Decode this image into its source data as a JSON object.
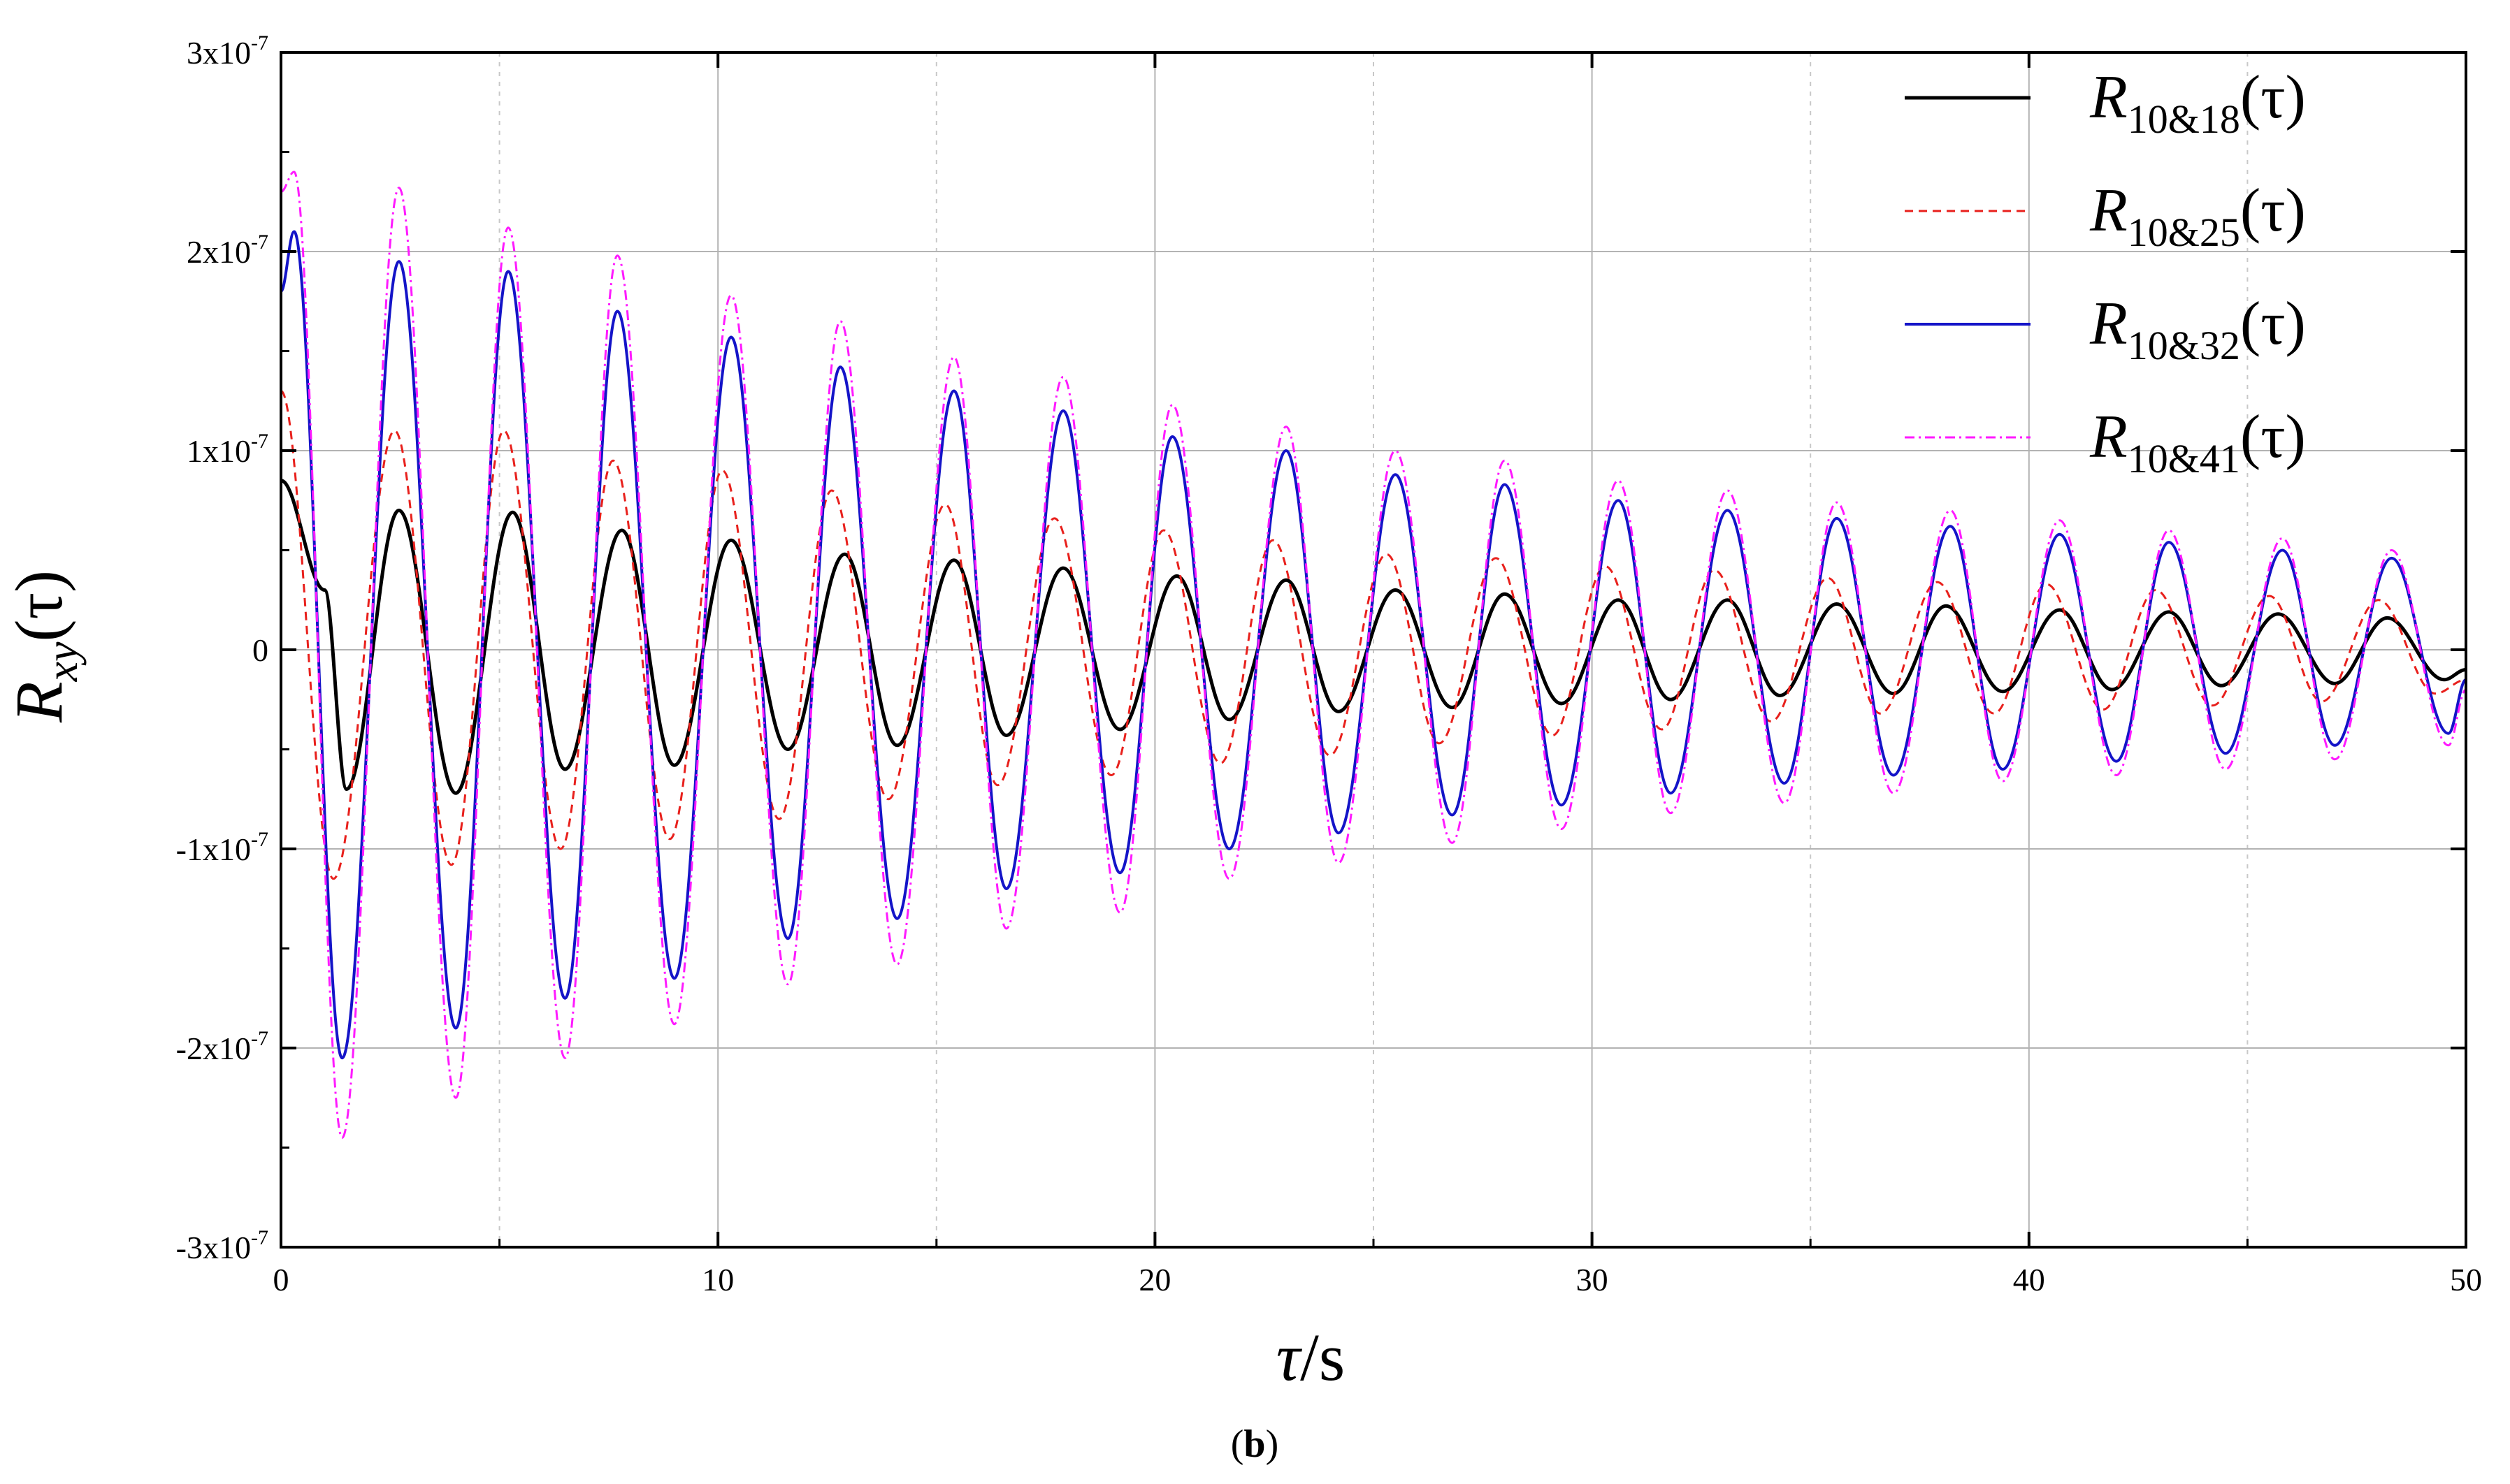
{
  "chart_data": {
    "type": "line",
    "xlabel": {
      "symbol": "τ",
      "unit": "/s"
    },
    "ylabel": {
      "base": "R",
      "sub": "xy",
      "arg": "(τ)"
    },
    "xlim": [
      0,
      50
    ],
    "ylim": [
      -3e-07,
      3e-07
    ],
    "x_ticks": [
      0,
      10,
      20,
      30,
      40,
      50
    ],
    "x_tick_labels": [
      "0",
      "10",
      "20",
      "30",
      "40",
      "50"
    ],
    "x_minor_ticks": [
      5,
      15,
      25,
      35,
      45
    ],
    "y_ticks": [
      3e-07,
      2e-07,
      1e-07,
      0,
      -1e-07,
      -2e-07,
      -3e-07
    ],
    "y_tick_labels": [
      {
        "base": "3x10",
        "exp": "-7"
      },
      {
        "base": "2x10",
        "exp": "-7"
      },
      {
        "base": "1x10",
        "exp": "-7"
      },
      {
        "base": "0",
        "exp": ""
      },
      {
        "base": "-1x10",
        "exp": "-7"
      },
      {
        "base": "-2x10",
        "exp": "-7"
      },
      {
        "base": "-3x10",
        "exp": "-7"
      }
    ],
    "grid": true,
    "legend_position": "top-right",
    "caption": {
      "open": "(",
      "letter": "b",
      "close": ")"
    },
    "series": [
      {
        "name": "R10&18(τ)",
        "name_base": "R",
        "name_sub": "10&18",
        "name_arg": "(τ)",
        "color": "#000000",
        "dash": "",
        "width": 5,
        "x": [
          0.0,
          1.0,
          1.5,
          2.7,
          4.0,
          5.3,
          6.5,
          7.8,
          9.0,
          10.3,
          11.6,
          12.9,
          14.1,
          15.4,
          16.6,
          17.9,
          19.2,
          20.5,
          21.7,
          23.0,
          24.2,
          25.5,
          26.8,
          28.0,
          29.3,
          30.6,
          31.8,
          33.1,
          34.3,
          35.6,
          36.9,
          38.1,
          39.4,
          40.7,
          41.9,
          43.2,
          44.4,
          45.7,
          47.0,
          48.2,
          49.5,
          50.0
        ],
        "y": [
          8.5e-08,
          3e-08,
          -7e-08,
          7e-08,
          -7.2e-08,
          6.9e-08,
          -6e-08,
          6e-08,
          -5.8e-08,
          5.5e-08,
          -5e-08,
          4.8e-08,
          -4.8e-08,
          4.5e-08,
          -4.3e-08,
          4.1e-08,
          -4e-08,
          3.7e-08,
          -3.5e-08,
          3.5e-08,
          -3.1e-08,
          3e-08,
          -2.9e-08,
          2.8e-08,
          -2.7e-08,
          2.5e-08,
          -2.5e-08,
          2.5e-08,
          -2.3e-08,
          2.3e-08,
          -2.2e-08,
          2.2e-08,
          -2.1e-08,
          2e-08,
          -2e-08,
          1.9e-08,
          -1.8e-08,
          1.8e-08,
          -1.7e-08,
          1.6e-08,
          -1.5e-08,
          -1e-08
        ]
      },
      {
        "name": "R10&25(τ)",
        "name_base": "R",
        "name_sub": "10&25",
        "name_arg": "(τ)",
        "color": "#e8201c",
        "dash": "12,8",
        "width": 3,
        "x": [
          0.0,
          1.2,
          2.6,
          3.9,
          5.1,
          6.4,
          7.6,
          8.9,
          10.1,
          11.4,
          12.6,
          13.9,
          15.2,
          16.4,
          17.7,
          19.0,
          20.2,
          21.5,
          22.7,
          24.0,
          25.3,
          26.5,
          27.8,
          29.1,
          30.3,
          31.6,
          32.8,
          34.1,
          35.4,
          36.6,
          37.9,
          39.2,
          40.4,
          41.7,
          42.9,
          44.2,
          45.5,
          46.7,
          48.0,
          49.3,
          50.0
        ],
        "y": [
          1.3e-07,
          -1.15e-07,
          1.1e-07,
          -1.08e-07,
          1.1e-07,
          -1e-07,
          9.5e-08,
          -9.5e-08,
          9e-08,
          -8.5e-08,
          8e-08,
          -7.5e-08,
          7.3e-08,
          -6.8e-08,
          6.6e-08,
          -6.3e-08,
          6e-08,
          -5.7e-08,
          5.5e-08,
          -5.3e-08,
          4.8e-08,
          -4.7e-08,
          4.6e-08,
          -4.3e-08,
          4.2e-08,
          -4e-08,
          4e-08,
          -3.6e-08,
          3.6e-08,
          -3.2e-08,
          3.4e-08,
          -3.2e-08,
          3.3e-08,
          -3e-08,
          3e-08,
          -2.8e-08,
          2.7e-08,
          -2.6e-08,
          2.5e-08,
          -2.2e-08,
          -1.5e-08
        ]
      },
      {
        "name": "R10&32(τ)",
        "name_base": "R",
        "name_sub": "10&32",
        "name_arg": "(τ)",
        "color": "#1414c8",
        "dash": "",
        "width": 4,
        "x": [
          0.0,
          0.3,
          1.4,
          2.7,
          4.0,
          5.2,
          6.5,
          7.7,
          9.0,
          10.3,
          11.6,
          12.8,
          14.1,
          15.4,
          16.6,
          17.9,
          19.2,
          20.4,
          21.7,
          23.0,
          24.2,
          25.5,
          26.8,
          28.0,
          29.3,
          30.6,
          31.8,
          33.1,
          34.4,
          35.6,
          36.9,
          38.2,
          39.4,
          40.7,
          42.0,
          43.2,
          44.5,
          45.8,
          47.0,
          48.3,
          49.6,
          50.0
        ],
        "y": [
          1.8e-07,
          2.1e-07,
          -2.05e-07,
          1.95e-07,
          -1.9e-07,
          1.9e-07,
          -1.75e-07,
          1.7e-07,
          -1.65e-07,
          1.57e-07,
          -1.45e-07,
          1.42e-07,
          -1.35e-07,
          1.3e-07,
          -1.2e-07,
          1.2e-07,
          -1.12e-07,
          1.07e-07,
          -1e-07,
          1e-07,
          -9.2e-08,
          8.8e-08,
          -8.3e-08,
          8.3e-08,
          -7.8e-08,
          7.5e-08,
          -7.2e-08,
          7e-08,
          -6.7e-08,
          6.6e-08,
          -6.3e-08,
          6.2e-08,
          -6e-08,
          5.8e-08,
          -5.6e-08,
          5.4e-08,
          -5.2e-08,
          5e-08,
          -4.8e-08,
          4.6e-08,
          -4.2e-08,
          -1.5e-08
        ]
      },
      {
        "name": "R10&41(τ)",
        "name_base": "R",
        "name_sub": "10&41",
        "name_arg": "(τ)",
        "color": "#ff1aff",
        "dash": "14,6,3,6",
        "width": 3,
        "x": [
          0.0,
          0.3,
          1.4,
          2.7,
          4.0,
          5.2,
          6.5,
          7.7,
          9.0,
          10.3,
          11.6,
          12.8,
          14.1,
          15.4,
          16.6,
          17.9,
          19.2,
          20.4,
          21.7,
          23.0,
          24.2,
          25.5,
          26.8,
          28.0,
          29.3,
          30.6,
          31.8,
          33.1,
          34.4,
          35.6,
          36.9,
          38.2,
          39.4,
          40.7,
          42.0,
          43.2,
          44.5,
          45.8,
          47.0,
          48.3,
          49.6,
          50.0
        ],
        "y": [
          2.3e-07,
          2.4e-07,
          -2.45e-07,
          2.32e-07,
          -2.25e-07,
          2.12e-07,
          -2.05e-07,
          1.98e-07,
          -1.88e-07,
          1.78e-07,
          -1.68e-07,
          1.65e-07,
          -1.58e-07,
          1.47e-07,
          -1.4e-07,
          1.37e-07,
          -1.32e-07,
          1.23e-07,
          -1.15e-07,
          1.12e-07,
          -1.07e-07,
          1e-07,
          -9.7e-08,
          9.5e-08,
          -9e-08,
          8.5e-08,
          -8.2e-08,
          8e-08,
          -7.7e-08,
          7.4e-08,
          -7.2e-08,
          7e-08,
          -6.6e-08,
          6.5e-08,
          -6.3e-08,
          6e-08,
          -6e-08,
          5.6e-08,
          -5.5e-08,
          5e-08,
          -4.8e-08,
          -2e-08
        ]
      }
    ]
  }
}
